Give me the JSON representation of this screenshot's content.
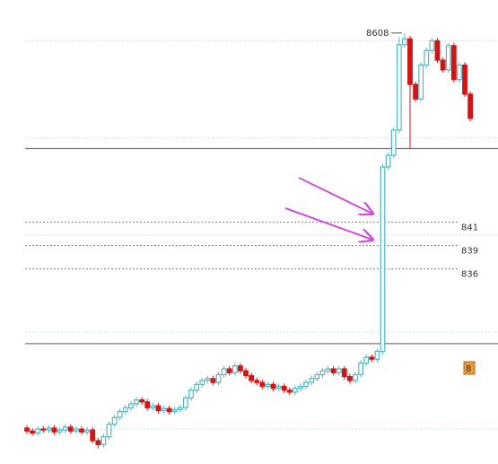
{
  "chart_data": {
    "type": "candlestick",
    "open": [
      8201,
      8198,
      8196,
      8200,
      8199,
      8201,
      8197,
      8199,
      8202,
      8198,
      8200,
      8197,
      8199,
      8188,
      8184,
      8192,
      8205,
      8212,
      8218,
      8222,
      8226,
      8230,
      8228,
      8222,
      8224,
      8219,
      8221,
      8218,
      8220,
      8222,
      8232,
      8240,
      8246,
      8250,
      8252,
      8248,
      8256,
      8262,
      8258,
      8265,
      8260,
      8255,
      8250,
      8248,
      8244,
      8246,
      8242,
      8244,
      8240,
      8238,
      8242,
      8244,
      8248,
      8252,
      8256,
      8260,
      8262,
      8258,
      8262,
      8254,
      8250,
      8256,
      8268,
      8274,
      8272,
      8280,
      8470,
      8482,
      8508,
      8596,
      8602,
      8555,
      8540,
      8575,
      8590,
      8600,
      8580,
      8570,
      8595,
      8560,
      8575,
      8545
    ],
    "high": [
      8204,
      8201,
      8203,
      8203,
      8204,
      8204,
      8202,
      8205,
      8205,
      8203,
      8203,
      8202,
      8202,
      8191,
      8195,
      8208,
      8215,
      8221,
      8225,
      8229,
      8233,
      8233,
      8231,
      8227,
      8227,
      8224,
      8224,
      8223,
      8225,
      8235,
      8243,
      8249,
      8253,
      8255,
      8255,
      8259,
      8265,
      8265,
      8268,
      8268,
      8263,
      8258,
      8253,
      8251,
      8249,
      8249,
      8247,
      8247,
      8243,
      8245,
      8247,
      8251,
      8255,
      8259,
      8263,
      8265,
      8265,
      8265,
      8265,
      8257,
      8259,
      8271,
      8277,
      8277,
      8283,
      8473,
      8485,
      8511,
      8604,
      8608,
      8605,
      8558,
      8578,
      8593,
      8603,
      8603,
      8583,
      8598,
      8598,
      8578,
      8578,
      8548
    ],
    "low": [
      8195,
      8193,
      8193,
      8196,
      8196,
      8194,
      8194,
      8196,
      8195,
      8195,
      8194,
      8194,
      8185,
      8180,
      8181,
      8189,
      8202,
      8209,
      8215,
      8219,
      8223,
      8225,
      8219,
      8219,
      8216,
      8216,
      8215,
      8215,
      8217,
      8219,
      8229,
      8237,
      8243,
      8247,
      8245,
      8245,
      8253,
      8255,
      8255,
      8257,
      8252,
      8247,
      8245,
      8241,
      8241,
      8239,
      8239,
      8237,
      8235,
      8235,
      8239,
      8241,
      8245,
      8249,
      8253,
      8257,
      8255,
      8255,
      8251,
      8247,
      8247,
      8253,
      8265,
      8269,
      8269,
      8277,
      8467,
      8479,
      8505,
      8593,
      8489,
      8537,
      8537,
      8572,
      8587,
      8577,
      8567,
      8567,
      8557,
      8557,
      8542,
      8517
    ],
    "close": [
      8198,
      8196,
      8200,
      8199,
      8201,
      8197,
      8199,
      8202,
      8198,
      8200,
      8197,
      8199,
      8188,
      8184,
      8192,
      8205,
      8212,
      8218,
      8222,
      8226,
      8230,
      8228,
      8222,
      8224,
      8219,
      8221,
      8218,
      8220,
      8222,
      8232,
      8240,
      8246,
      8250,
      8252,
      8248,
      8256,
      8262,
      8258,
      8265,
      8260,
      8255,
      8250,
      8248,
      8244,
      8246,
      8242,
      8244,
      8240,
      8238,
      8242,
      8244,
      8248,
      8252,
      8256,
      8260,
      8262,
      8258,
      8262,
      8254,
      8250,
      8256,
      8268,
      8274,
      8272,
      8280,
      8470,
      8482,
      8508,
      8596,
      8602,
      8555,
      8540,
      8575,
      8590,
      8600,
      8580,
      8570,
      8595,
      8560,
      8575,
      8545,
      8520
    ],
    "up_color": "#4fb8c4",
    "down_color": "#d41414",
    "ylim": [
      8164,
      8642
    ],
    "grid_lines": [
      8600,
      8500,
      8400,
      8300,
      8200
    ],
    "solid_levels": [
      8489,
      8288
    ],
    "dashed_levels": [
      {
        "value": 8413,
        "label": "841"
      },
      {
        "value": 8389,
        "label": "839"
      },
      {
        "value": 8365,
        "label": "836"
      }
    ],
    "high_annotation": {
      "value": 8608,
      "label": "8608"
    },
    "price_tag": "8"
  }
}
